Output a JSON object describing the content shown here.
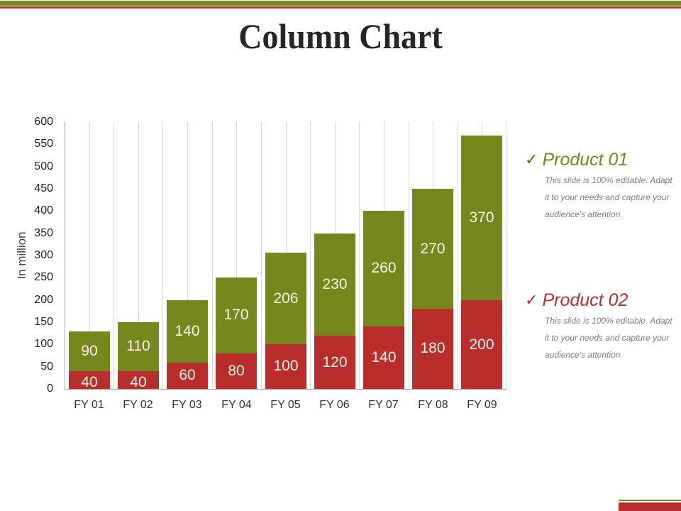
{
  "title": "Column Chart",
  "colors": {
    "product01": "#76881d",
    "product02": "#b92d2d",
    "top_bar_olive": "#7a8a22",
    "top_bar_red": "#a83a36"
  },
  "legend": [
    {
      "check_icon": "✓",
      "title": "Product 01",
      "color": "#76881d",
      "description": "This slide is 100% editable. Adapt it to your needs and capture your audience's attention."
    },
    {
      "check_icon": "✓",
      "title": "Product 02",
      "color": "#b92d2d",
      "description": "This slide is 100% editable. Adapt it to your needs and capture your audience's attention."
    }
  ],
  "chart_data": {
    "type": "bar",
    "stacked": true,
    "title": "Column Chart",
    "xlabel": "",
    "ylabel": "In million",
    "ylim": [
      0,
      600
    ],
    "yticks": [
      0,
      50,
      100,
      150,
      200,
      250,
      300,
      350,
      400,
      450,
      500,
      550,
      600
    ],
    "categories": [
      "FY 01",
      "FY 02",
      "FY 03",
      "FY 04",
      "FY 05",
      "FY 06",
      "FY 07",
      "FY 08",
      "FY 09"
    ],
    "series": [
      {
        "name": "Product 02",
        "color": "#b92d2d",
        "values": [
          40,
          40,
          60,
          80,
          100,
          120,
          140,
          180,
          200
        ]
      },
      {
        "name": "Product 01",
        "color": "#76881d",
        "values": [
          90,
          110,
          140,
          170,
          206,
          230,
          260,
          270,
          370
        ]
      }
    ],
    "grid": "vertical lines",
    "legend_position": "right",
    "data_labels": true
  }
}
